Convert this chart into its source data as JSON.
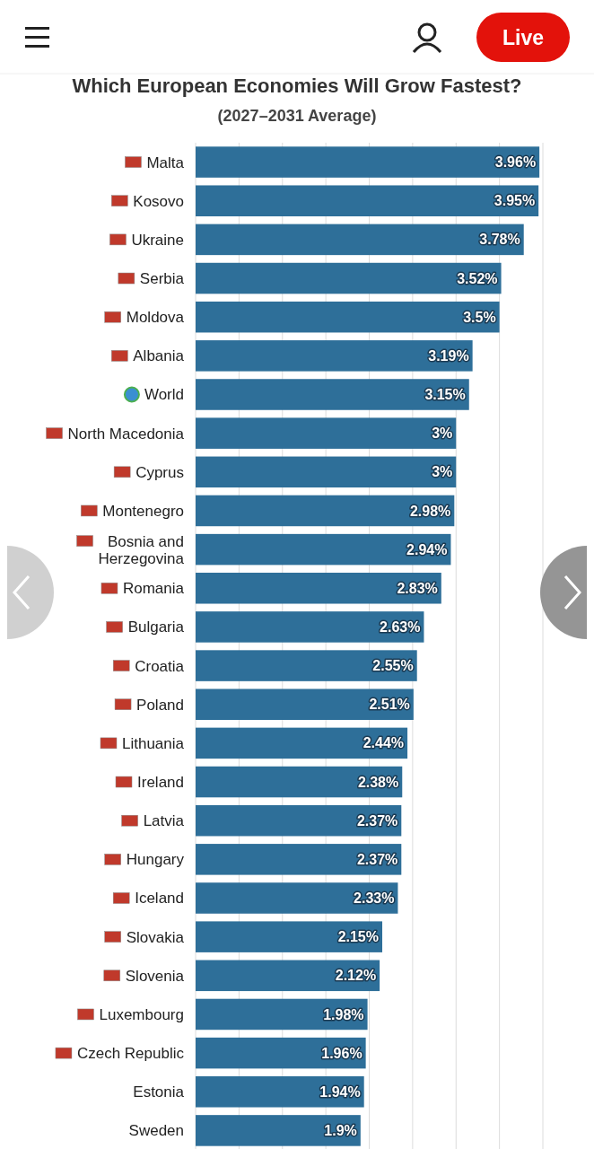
{
  "chart_data": {
    "type": "bar",
    "orientation": "horizontal",
    "title": "Which European Economies Will Grow Fastest?",
    "subtitle": "(2027–2031 Average)",
    "categories": [
      "Malta",
      "Kosovo",
      "Ukraine",
      "Serbia",
      "Moldova",
      "Albania",
      "World",
      "North Macedonia",
      "Cyprus",
      "Montenegro",
      "Bosnia and Herzegovina",
      "Romania",
      "Bulgaria",
      "Croatia",
      "Poland",
      "Lithuania",
      "Ireland",
      "Latvia",
      "Hungary",
      "Iceland",
      "Slovakia",
      "Slovenia",
      "Luxembourg",
      "Czech Republic",
      "Estonia",
      "Sweden"
    ],
    "values": [
      3.96,
      3.95,
      3.78,
      3.52,
      3.5,
      3.19,
      3.15,
      3,
      3,
      2.98,
      2.94,
      2.83,
      2.63,
      2.55,
      2.51,
      2.44,
      2.38,
      2.37,
      2.37,
      2.33,
      2.15,
      2.12,
      1.98,
      1.96,
      1.94,
      1.9
    ],
    "value_labels": [
      "3.96%",
      "3.95%",
      "3.78%",
      "3.52%",
      "3.5%",
      "3.19%",
      "3.15%",
      "3%",
      "3%",
      "2.98%",
      "2.94%",
      "2.83%",
      "2.63%",
      "2.55%",
      "2.51%",
      "2.44%",
      "2.38%",
      "2.37%",
      "2.37%",
      "2.33%",
      "2.15%",
      "2.12%",
      "1.98%",
      "1.96%",
      "1.94%",
      "1.9%"
    ],
    "color": "#2e6f99",
    "xlim": [
      0,
      4
    ],
    "xticks": [
      {
        "value": 0,
        "label": null
      },
      {
        "value": 0.5,
        "label": null
      },
      {
        "value": 1,
        "label": null
      },
      {
        "value": 1.5,
        "label": null
      },
      {
        "value": 2,
        "label": null
      },
      {
        "value": 2.5,
        "label": null
      },
      {
        "value": 3,
        "label": null
      },
      {
        "value": 3.5,
        "label": null
      },
      {
        "value": 4,
        "label": null
      }
    ],
    "grid": "x",
    "tick_labels": "y",
    "annotations": [
      "Live"
    ]
  }
}
